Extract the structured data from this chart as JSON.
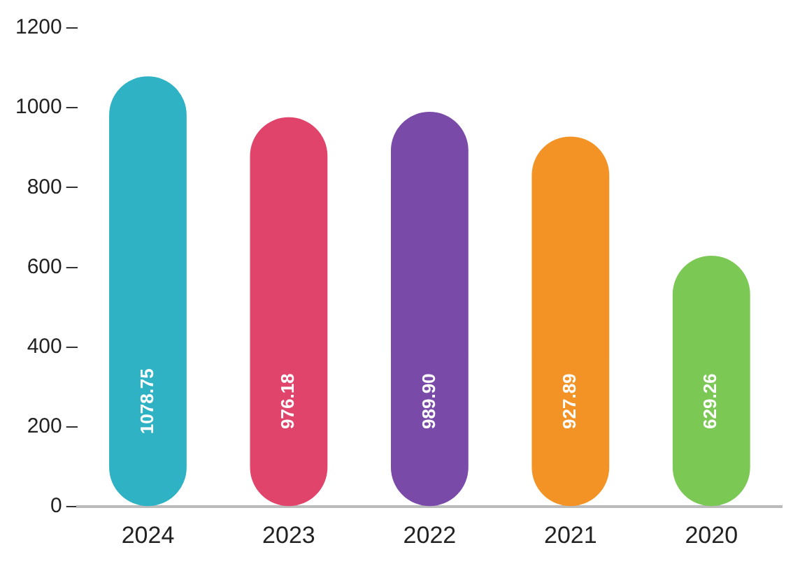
{
  "chart_data": {
    "type": "bar",
    "categories": [
      "2024",
      "2023",
      "2022",
      "2021",
      "2020"
    ],
    "values": [
      1078.75,
      976.18,
      989.9,
      927.89,
      629.26
    ],
    "value_labels": [
      "1078.75",
      "976.18",
      "989.90",
      "927.89",
      "629.26"
    ],
    "colors": [
      "#2fb3c4",
      "#e0446a",
      "#7a4aa8",
      "#f39325",
      "#7cc855"
    ],
    "ylim": [
      0,
      1200
    ],
    "yticks": [
      0,
      200,
      400,
      600,
      800,
      1000,
      1200
    ],
    "grid": false
  }
}
